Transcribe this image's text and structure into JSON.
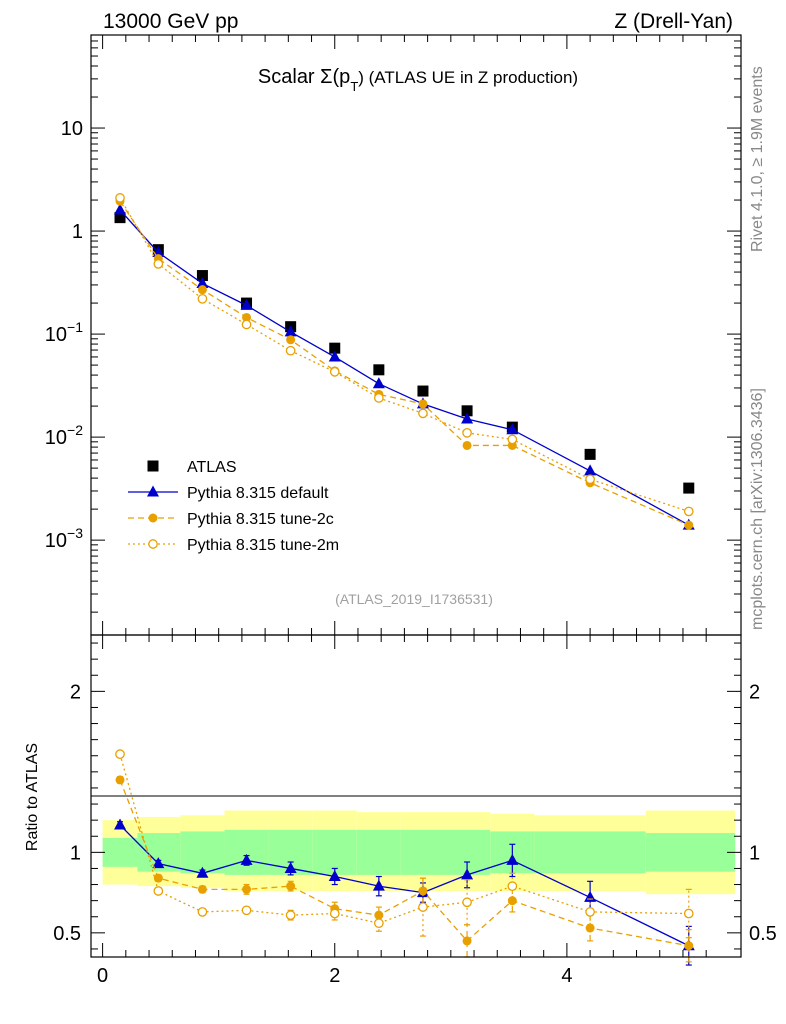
{
  "header": {
    "left": "13000 GeV pp",
    "right": "Z (Drell-Yan)"
  },
  "side_labels": {
    "rivet": "Rivet 4.1.0, ≥ 1.9M events",
    "mcplots": "mcplots.cern.ch [arXiv:1306.3436]"
  },
  "colors": {
    "data": "#000000",
    "default": "#0000cc",
    "tune": "#e8a000",
    "band_inner": "#99ff99",
    "band_outer": "#ffff99"
  },
  "chart_data": [
    {
      "type": "scatter",
      "title": "Scalar Σ(p_T) (ATLAS UE in Z production)",
      "title_parts": {
        "pre": "Scalar Σ(p",
        "sub": "T",
        "post": ") (ATLAS UE in Z production)"
      },
      "reference": "(ATLAS_2019_I1736531)",
      "yscale": "log",
      "ylim": [
        0.00012,
        80
      ],
      "xlim": [
        -0.1,
        5.5
      ],
      "y_ticks": [
        {
          "value": 10,
          "label": "10"
        },
        {
          "value": 1,
          "label": "1"
        },
        {
          "value": 0.1,
          "label_base": "10",
          "label_exp": "−1"
        },
        {
          "value": 0.01,
          "label_base": "10",
          "label_exp": "−2"
        },
        {
          "value": 0.001,
          "label_base": "10",
          "label_exp": "−3"
        }
      ],
      "x": [
        0.15,
        0.48,
        0.86,
        1.24,
        1.62,
        2.0,
        2.38,
        2.76,
        3.14,
        3.53,
        4.2,
        5.05
      ],
      "legend": [
        {
          "label": "ATLAS",
          "marker": "square"
        },
        {
          "label": "Pythia 8.315 default",
          "marker": "triangle"
        },
        {
          "label": "Pythia 8.315 tune-2c",
          "marker": "circle"
        },
        {
          "label": "Pythia 8.315 tune-2m",
          "marker": "open-circle"
        }
      ],
      "series": [
        {
          "name": "ATLAS",
          "values": [
            1.35,
            0.66,
            0.37,
            0.2,
            0.118,
            0.073,
            0.045,
            0.028,
            0.018,
            0.0125,
            0.0068,
            0.0032
          ]
        },
        {
          "name": "Pythia 8.315 default",
          "values": [
            1.6,
            0.62,
            0.31,
            0.19,
            0.105,
            0.06,
            0.033,
            0.021,
            0.015,
            0.0118,
            0.0047,
            0.0014
          ]
        },
        {
          "name": "Pythia 8.315 tune-2c",
          "values": [
            1.95,
            0.54,
            0.27,
            0.145,
            0.088,
            0.044,
            0.026,
            0.021,
            0.0083,
            0.0083,
            0.0036,
            0.0014
          ]
        },
        {
          "name": "Pythia 8.315 tune-2m",
          "values": [
            2.1,
            0.48,
            0.22,
            0.124,
            0.069,
            0.043,
            0.024,
            0.017,
            0.011,
            0.0095,
            0.0039,
            0.0019
          ]
        }
      ]
    },
    {
      "type": "scatter",
      "ylabel": "Ratio to ATLAS",
      "xlim": [
        -0.1,
        5.5
      ],
      "ylim": [
        0.35,
        2.35
      ],
      "x_ticks": [
        {
          "value": 0,
          "label": "0"
        },
        {
          "value": 2,
          "label": "2"
        },
        {
          "value": 4,
          "label": "4"
        }
      ],
      "y_ticks": [
        {
          "value": 2,
          "label": "2"
        },
        {
          "value": 1,
          "label": "1"
        },
        {
          "value": 0.5,
          "label": "0.5"
        }
      ],
      "band_bins": [
        0,
        0.3,
        0.67,
        1.05,
        1.43,
        1.81,
        2.19,
        2.57,
        2.95,
        3.34,
        3.72,
        4.68,
        5.45
      ],
      "band_inner": [
        [
          0.91,
          1.09
        ],
        [
          0.88,
          1.12
        ],
        [
          0.87,
          1.13
        ],
        [
          0.86,
          1.14
        ],
        [
          0.86,
          1.14
        ],
        [
          0.86,
          1.14
        ],
        [
          0.86,
          1.14
        ],
        [
          0.86,
          1.14
        ],
        [
          0.86,
          1.14
        ],
        [
          0.87,
          1.13
        ],
        [
          0.87,
          1.13
        ],
        [
          0.88,
          1.12
        ]
      ],
      "band_outer": [
        [
          0.8,
          1.2
        ],
        [
          0.79,
          1.22
        ],
        [
          0.78,
          1.23
        ],
        [
          0.76,
          1.26
        ],
        [
          0.76,
          1.26
        ],
        [
          0.76,
          1.26
        ],
        [
          0.76,
          1.25
        ],
        [
          0.76,
          1.25
        ],
        [
          0.76,
          1.25
        ],
        [
          0.76,
          1.24
        ],
        [
          0.76,
          1.23
        ],
        [
          0.74,
          1.26
        ]
      ],
      "series": [
        {
          "name": "Pythia 8.315 default",
          "values": [
            1.17,
            0.93,
            0.87,
            0.95,
            0.9,
            0.85,
            0.79,
            0.75,
            0.86,
            0.95,
            0.72,
            0.42
          ],
          "err": [
            0.02,
            0.02,
            0.02,
            0.03,
            0.04,
            0.05,
            0.06,
            0.06,
            0.08,
            0.1,
            0.1,
            0.12
          ]
        },
        {
          "name": "Pythia 8.315 tune-2c",
          "values": [
            1.45,
            0.84,
            0.77,
            0.77,
            0.79,
            0.65,
            0.61,
            0.76,
            0.45,
            0.7,
            0.53,
            0.42
          ],
          "err": [
            0.02,
            0.02,
            0.02,
            0.03,
            0.03,
            0.04,
            0.05,
            0.08,
            0.1,
            0.07,
            0.08,
            0.1
          ]
        },
        {
          "name": "Pythia 8.315 tune-2m",
          "values": [
            1.61,
            0.76,
            0.63,
            0.64,
            0.61,
            0.62,
            0.56,
            0.66,
            0.69,
            0.79,
            0.63,
            0.62
          ],
          "err": [
            0.02,
            0.02,
            0.02,
            0.02,
            0.03,
            0.04,
            0.05,
            0.18,
            0.14,
            0.08,
            0.08,
            0.15
          ]
        }
      ]
    }
  ]
}
